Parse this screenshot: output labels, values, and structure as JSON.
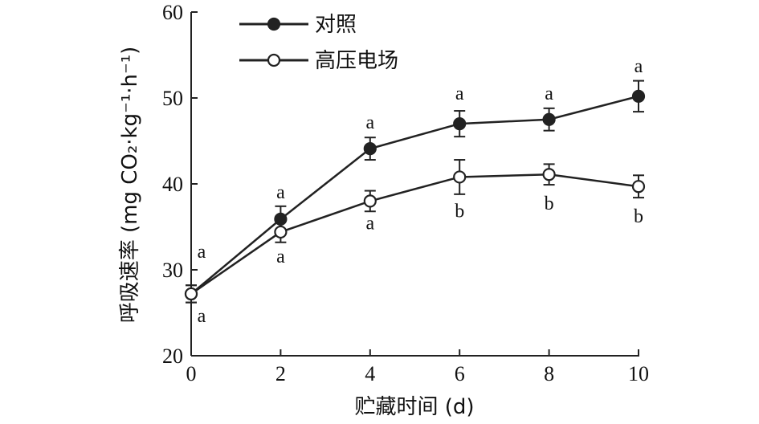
{
  "chart_data": {
    "type": "line",
    "x": [
      0,
      2,
      4,
      6,
      8,
      10
    ],
    "xlim": [
      0,
      10
    ],
    "ylim": [
      20,
      60
    ],
    "xticks": [
      "0",
      "2",
      "4",
      "6",
      "8",
      "10"
    ],
    "yticks": [
      "20",
      "30",
      "40",
      "50",
      "60"
    ],
    "xlabel": "贮藏时间 (d)",
    "ylabel": "呼吸速率 (mg CO₂·kg⁻¹·h⁻¹)",
    "grid": false,
    "legend_position": "top-left",
    "series": [
      {
        "name": "对照",
        "marker": "filled-circle",
        "values": [
          27.2,
          35.9,
          44.1,
          47.0,
          47.5,
          50.2
        ],
        "errors": [
          1.0,
          1.5,
          1.3,
          1.5,
          1.3,
          1.8
        ],
        "labels": [
          "a",
          "a",
          "a",
          "a",
          "a",
          "a"
        ]
      },
      {
        "name": "高压电场",
        "marker": "open-circle",
        "values": [
          27.2,
          34.4,
          38.0,
          40.8,
          41.1,
          39.7
        ],
        "errors": [
          1.0,
          1.2,
          1.2,
          2.0,
          1.2,
          1.3
        ],
        "labels": [
          "a",
          "a",
          "a",
          "b",
          "b",
          "b"
        ]
      }
    ],
    "colors": {
      "line": "#222222",
      "open_fill": "#ffffff"
    }
  }
}
